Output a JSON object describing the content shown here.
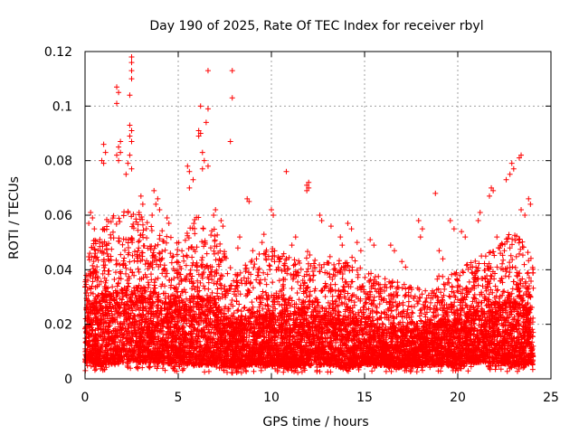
{
  "chart_data": {
    "type": "scatter",
    "title": "Day 190 of 2025, Rate Of TEC Index for receiver rbyl",
    "xlabel": "GPS time / hours",
    "ylabel": "ROTI / TECUs",
    "xlim": [
      0,
      25
    ],
    "ylim": [
      0,
      0.12
    ],
    "x_ticks": [
      {
        "value": 0,
        "label": "0"
      },
      {
        "value": 5,
        "label": "5"
      },
      {
        "value": 10,
        "label": "10"
      },
      {
        "value": 15,
        "label": "15"
      },
      {
        "value": 20,
        "label": "20"
      },
      {
        "value": 25,
        "label": "25"
      }
    ],
    "y_ticks": [
      {
        "value": 0,
        "label": "0"
      },
      {
        "value": 0.02,
        "label": "0.02"
      },
      {
        "value": 0.04,
        "label": "0.04"
      },
      {
        "value": 0.06,
        "label": "0.06"
      },
      {
        "value": 0.08,
        "label": "0.08"
      },
      {
        "value": 0.1,
        "label": "0.1"
      },
      {
        "value": 0.12,
        "label": "0.12"
      }
    ],
    "grid": true,
    "marker": "plus",
    "color": "#ff0000",
    "series": [
      {
        "name": "ROTI",
        "points": [
          [
            2.5,
            0.118
          ],
          [
            2.5,
            0.116
          ],
          [
            2.5,
            0.113
          ],
          [
            2.5,
            0.11
          ],
          [
            2.4,
            0.104
          ],
          [
            1.7,
            0.107
          ],
          [
            1.8,
            0.105
          ],
          [
            1.7,
            0.101
          ],
          [
            6.6,
            0.113
          ],
          [
            7.9,
            0.113
          ],
          [
            7.9,
            0.103
          ],
          [
            7.8,
            0.087
          ],
          [
            6.2,
            0.1
          ],
          [
            6.6,
            0.099
          ],
          [
            6.5,
            0.094
          ],
          [
            6.1,
            0.091
          ],
          [
            6.2,
            0.09
          ],
          [
            6.1,
            0.089
          ],
          [
            2.4,
            0.093
          ],
          [
            2.5,
            0.091
          ],
          [
            2.4,
            0.089
          ],
          [
            2.5,
            0.087
          ],
          [
            1.9,
            0.087
          ],
          [
            1.8,
            0.085
          ],
          [
            1.9,
            0.083
          ],
          [
            1.7,
            0.082
          ],
          [
            1.8,
            0.08
          ],
          [
            1.0,
            0.086
          ],
          [
            1.1,
            0.083
          ],
          [
            0.9,
            0.08
          ],
          [
            1.0,
            0.079
          ],
          [
            2.4,
            0.082
          ],
          [
            2.3,
            0.079
          ],
          [
            2.5,
            0.077
          ],
          [
            2.2,
            0.075
          ],
          [
            6.3,
            0.083
          ],
          [
            6.4,
            0.08
          ],
          [
            6.6,
            0.078
          ],
          [
            6.3,
            0.077
          ],
          [
            5.5,
            0.078
          ],
          [
            5.6,
            0.076
          ],
          [
            5.8,
            0.073
          ],
          [
            5.6,
            0.07
          ],
          [
            10.8,
            0.076
          ],
          [
            23.4,
            0.082
          ],
          [
            23.3,
            0.081
          ],
          [
            22.9,
            0.079
          ],
          [
            23.0,
            0.077
          ],
          [
            22.6,
            0.073
          ],
          [
            22.8,
            0.075
          ],
          [
            21.8,
            0.07
          ],
          [
            21.9,
            0.069
          ],
          [
            21.7,
            0.067
          ],
          [
            23.8,
            0.066
          ],
          [
            23.9,
            0.064
          ],
          [
            23.6,
            0.06
          ],
          [
            23.4,
            0.062
          ],
          [
            18.8,
            0.068
          ],
          [
            12.0,
            0.072
          ],
          [
            11.9,
            0.071
          ],
          [
            12.0,
            0.07
          ],
          [
            11.9,
            0.069
          ],
          [
            8.7,
            0.066
          ],
          [
            8.8,
            0.065
          ],
          [
            10.0,
            0.062
          ],
          [
            10.1,
            0.06
          ],
          [
            0.3,
            0.061
          ],
          [
            0.4,
            0.059
          ],
          [
            0.2,
            0.057
          ],
          [
            0.5,
            0.055
          ],
          [
            3.7,
            0.069
          ],
          [
            3.9,
            0.066
          ],
          [
            3.8,
            0.064
          ],
          [
            4.0,
            0.062
          ],
          [
            3.6,
            0.06
          ],
          [
            4.4,
            0.059
          ],
          [
            4.5,
            0.057
          ],
          [
            3.0,
            0.067
          ],
          [
            3.1,
            0.064
          ],
          [
            2.9,
            0.061
          ],
          [
            7.0,
            0.062
          ],
          [
            6.9,
            0.06
          ],
          [
            7.3,
            0.058
          ],
          [
            7.4,
            0.056
          ],
          [
            12.6,
            0.06
          ],
          [
            12.7,
            0.058
          ],
          [
            14.1,
            0.057
          ],
          [
            14.3,
            0.055
          ],
          [
            13.2,
            0.056
          ],
          [
            17.9,
            0.058
          ],
          [
            18.1,
            0.055
          ],
          [
            18.0,
            0.052
          ],
          [
            19.6,
            0.058
          ],
          [
            19.8,
            0.055
          ],
          [
            20.2,
            0.054
          ],
          [
            20.4,
            0.052
          ],
          [
            21.2,
            0.061
          ],
          [
            21.1,
            0.058
          ],
          [
            16.4,
            0.049
          ],
          [
            16.6,
            0.047
          ],
          [
            15.3,
            0.051
          ],
          [
            15.5,
            0.049
          ],
          [
            9.6,
            0.053
          ],
          [
            9.5,
            0.05
          ],
          [
            11.3,
            0.052
          ],
          [
            11.1,
            0.049
          ],
          [
            13.7,
            0.052
          ],
          [
            13.8,
            0.049
          ],
          [
            14.6,
            0.05
          ],
          [
            14.8,
            0.047
          ],
          [
            8.3,
            0.052
          ],
          [
            8.2,
            0.048
          ],
          [
            9.0,
            0.047
          ],
          [
            9.2,
            0.044
          ],
          [
            17.0,
            0.043
          ],
          [
            17.2,
            0.041
          ],
          [
            19.0,
            0.047
          ],
          [
            19.2,
            0.044
          ],
          [
            22.1,
            0.052
          ],
          [
            22.3,
            0.049
          ],
          [
            22.5,
            0.047
          ],
          [
            21.5,
            0.045
          ]
        ]
      }
    ],
    "density_profile": {
      "description": "Dense band of ROTI values between about 0.005 and 0.03 TECU/s across hours 0-24, with upper envelope varying by hour",
      "hours": [
        0,
        1,
        2,
        3,
        4,
        5,
        6,
        7,
        8,
        9,
        10,
        11,
        12,
        13,
        14,
        15,
        16,
        17,
        18,
        19,
        20,
        21,
        22,
        23,
        24
      ],
      "upper_envelope": [
        0.045,
        0.058,
        0.062,
        0.06,
        0.055,
        0.05,
        0.06,
        0.055,
        0.038,
        0.045,
        0.048,
        0.045,
        0.047,
        0.045,
        0.047,
        0.04,
        0.038,
        0.035,
        0.033,
        0.038,
        0.04,
        0.045,
        0.048,
        0.055,
        0.045
      ],
      "core_upper": [
        0.025,
        0.03,
        0.032,
        0.03,
        0.028,
        0.026,
        0.03,
        0.028,
        0.02,
        0.022,
        0.024,
        0.024,
        0.024,
        0.022,
        0.022,
        0.02,
        0.018,
        0.018,
        0.018,
        0.02,
        0.022,
        0.024,
        0.026,
        0.028,
        0.025
      ],
      "lower_envelope": [
        0.006,
        0.005,
        0.006,
        0.006,
        0.006,
        0.005,
        0.005,
        0.005,
        0.004,
        0.005,
        0.005,
        0.004,
        0.005,
        0.005,
        0.004,
        0.005,
        0.005,
        0.004,
        0.005,
        0.005,
        0.005,
        0.006,
        0.006,
        0.005,
        0.005
      ]
    }
  }
}
